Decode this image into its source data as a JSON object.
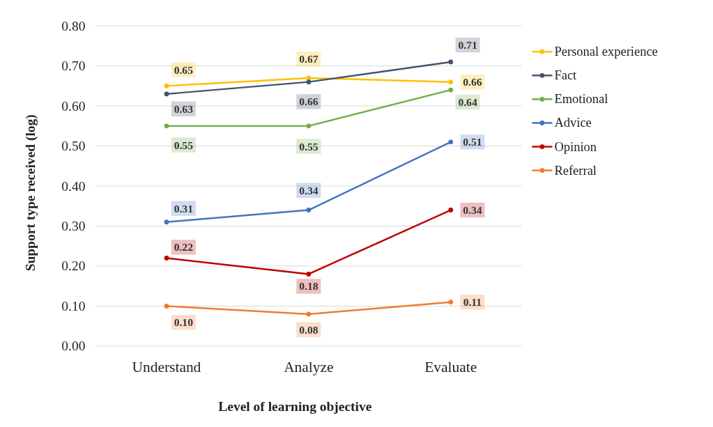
{
  "chart_data": {
    "type": "line",
    "xlabel": "Level of learning objective",
    "ylabel": "Support type received (log)",
    "categories": [
      "Understand",
      "Analyze",
      "Evaluate"
    ],
    "ylim": [
      0,
      0.8
    ],
    "yticks": [
      {
        "value": 0,
        "label": "0.00"
      },
      {
        "value": 0.1,
        "label": "0.10"
      },
      {
        "value": 0.2,
        "label": "0.20"
      },
      {
        "value": 0.3,
        "label": "0.30"
      },
      {
        "value": 0.4,
        "label": "0.40"
      },
      {
        "value": 0.5,
        "label": "0.50"
      },
      {
        "value": 0.6,
        "label": "0.60"
      },
      {
        "value": 0.7,
        "label": "0.70"
      },
      {
        "value": 0.8,
        "label": "0.80"
      }
    ],
    "grid": "y",
    "legend": "right",
    "marker": "circle",
    "line_style": "solid",
    "series": [
      {
        "name": "Personal experience",
        "color": "#ffc000",
        "values": [
          0.65,
          0.67,
          0.66
        ],
        "value_labels": [
          "0.65",
          "0.67",
          "0.66"
        ]
      },
      {
        "name": "Fact",
        "color": "#44546a",
        "values": [
          0.63,
          0.66,
          0.71
        ],
        "value_labels": [
          "0.63",
          "0.66",
          "0.71"
        ]
      },
      {
        "name": "Emotional",
        "color": "#70ad47",
        "values": [
          0.55,
          0.55,
          0.64
        ],
        "value_labels": [
          "0.55",
          "0.55",
          "0.64"
        ]
      },
      {
        "name": "Advice",
        "color": "#4472c4",
        "values": [
          0.31,
          0.34,
          0.51
        ],
        "value_labels": [
          "0.31",
          "0.34",
          "0.51"
        ]
      },
      {
        "name": "Opinion",
        "color": "#c00000",
        "values": [
          0.22,
          0.18,
          0.34
        ],
        "value_labels": [
          "0.22",
          "0.18",
          "0.34"
        ]
      },
      {
        "name": "Referral",
        "color": "#ed7d31",
        "values": [
          0.1,
          0.08,
          0.11
        ],
        "value_labels": [
          "0.10",
          "0.08",
          "0.11"
        ]
      }
    ]
  }
}
